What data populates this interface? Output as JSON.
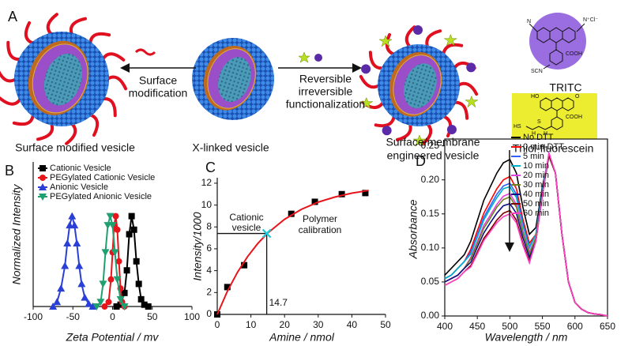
{
  "panel_a": {
    "label": "A",
    "arrow_left_text": [
      "Surface",
      "modification"
    ],
    "arrow_right_text": [
      "Reversible",
      "irreversible",
      "functionalization"
    ],
    "captions": {
      "left": "Surface modified vesicle",
      "middle": "X-linked vesicle",
      "right": [
        "Surface/membrane",
        "engineered vesicle"
      ]
    },
    "tritc": {
      "name": "TRITC",
      "atoms": [
        "N",
        "N⁺Cl⁻",
        "COOH",
        "SCN"
      ]
    },
    "fluorescein": {
      "name": "Thiol-fluorescein",
      "atoms": [
        "HO",
        "O",
        "COOH",
        "HS",
        "S",
        "H",
        "H"
      ]
    }
  },
  "chart_data": [
    {
      "type": "line",
      "panel_label": "B",
      "xlabel": "Zeta Potential / mv",
      "ylabel": "Normalized Intensity",
      "xlim": [
        -100,
        100
      ],
      "xticks": [
        -100,
        -50,
        0,
        50,
        100
      ],
      "ylim": [
        0,
        1.6
      ],
      "legend": "upper left",
      "series": [
        {
          "name": "Cationic Vesicle",
          "color": "#000000",
          "marker": "square",
          "line": true,
          "x": [
            5,
            10,
            15,
            18,
            21,
            24,
            27,
            30,
            33,
            36,
            40,
            45
          ],
          "values": [
            0,
            0.02,
            0.15,
            0.4,
            0.8,
            1.0,
            0.85,
            0.5,
            0.25,
            0.08,
            0.02,
            0
          ]
        },
        {
          "name": "PEGylated Cationic Vesicle",
          "color": "#e8141c",
          "marker": "circle",
          "line": true,
          "x": [
            -10,
            -5,
            -2,
            0,
            2,
            4,
            6,
            8,
            10,
            12,
            15
          ],
          "values": [
            0,
            0.05,
            0.3,
            0.6,
            0.9,
            1.0,
            0.85,
            0.5,
            0.2,
            0.05,
            0
          ]
        },
        {
          "name": "Anionic Vesicle",
          "color": "#2a3fd6",
          "marker": "triangle-up",
          "line": true,
          "x": [
            -75,
            -70,
            -65,
            -60,
            -57,
            -54,
            -51,
            -48,
            -45,
            -42,
            -39,
            -35,
            -30,
            -25
          ],
          "values": [
            0,
            0.05,
            0.2,
            0.45,
            0.7,
            0.9,
            1.0,
            0.9,
            0.7,
            0.45,
            0.25,
            0.1,
            0.03,
            0
          ]
        },
        {
          "name": "PEGylated Anionic Vesicle",
          "color": "#20a070",
          "marker": "triangle-down",
          "line": true,
          "x": [
            -20,
            -15,
            -12,
            -9,
            -6,
            -3,
            0,
            3,
            6,
            10,
            15
          ],
          "values": [
            0,
            0.05,
            0.25,
            0.6,
            0.9,
            1.0,
            0.9,
            0.6,
            0.3,
            0.08,
            0
          ]
        }
      ]
    },
    {
      "type": "scatter",
      "panel_label": "C",
      "xlabel": "Amine / nmol",
      "ylabel": "Intensity/1000",
      "xlim": [
        0,
        50
      ],
      "xticks": [
        0,
        10,
        20,
        30,
        40,
        50
      ],
      "ylim": [
        0,
        12.5
      ],
      "yticks": [
        0,
        2,
        4,
        6,
        8,
        10,
        12
      ],
      "annotations": [
        [
          "Cationic",
          "vesicle"
        ],
        [
          "Polymer",
          "calibration"
        ]
      ],
      "series": [
        {
          "color": "#000000",
          "marker": "square",
          "line": false,
          "x": [
            0,
            3,
            8,
            22,
            29,
            37,
            44
          ],
          "values": [
            0,
            2.5,
            4.5,
            9.2,
            10.3,
            11,
            11.1
          ]
        },
        {
          "color": "#e8141c",
          "marker": "none",
          "line": true,
          "x": [
            0,
            3,
            6,
            9,
            12,
            15,
            20,
            25,
            30,
            35,
            40,
            45
          ],
          "values": [
            0,
            2.11,
            3.85,
            5.28,
            6.47,
            7.44,
            8.7,
            9.61,
            10.27,
            10.74,
            11.09,
            11.34
          ]
        },
        {
          "color": "#20c8d8",
          "marker": "x",
          "line": false,
          "droplines": true,
          "x": [
            14.7
          ],
          "values": [
            7.4
          ]
        }
      ]
    },
    {
      "type": "line",
      "panel_label": "D",
      "xlabel": "Wavelength / nm",
      "ylabel": "Absorbance",
      "xlim": [
        400,
        650
      ],
      "xticks": [
        400,
        450,
        500,
        550,
        600,
        650
      ],
      "ylim": [
        0,
        0.26
      ],
      "yticks": [
        {
          "value": 0,
          "label": "0.00"
        },
        0.05,
        {
          "value": 0.1,
          "label": "0.10"
        },
        0.15,
        {
          "value": 0.2,
          "label": "0.20"
        },
        0.25
      ],
      "legend": "upper right",
      "frame": true,
      "x": [
        400,
        410,
        420,
        430,
        440,
        450,
        460,
        470,
        480,
        490,
        500,
        510,
        520,
        530,
        540,
        550,
        560,
        570,
        580,
        590,
        600,
        610,
        620,
        630,
        640,
        650
      ],
      "series": [
        {
          "name": "No DTT",
          "color": "#000000",
          "marker": "none",
          "line": true,
          "values": [
            0.06,
            0.07,
            0.08,
            0.09,
            0.11,
            0.14,
            0.17,
            0.19,
            0.21,
            0.225,
            0.23,
            0.21,
            0.16,
            0.12,
            0.13,
            0.19,
            0.235,
            0.21,
            0.12,
            0.05,
            0.02,
            0.01,
            0.005,
            0.003,
            0.002,
            0
          ]
        },
        {
          "name": "0 min-DTT",
          "color": "#ff0000",
          "marker": "none",
          "line": true,
          "values": [
            0.055,
            0.06,
            0.07,
            0.08,
            0.098,
            0.125,
            0.151,
            0.169,
            0.187,
            0.2,
            0.205,
            0.187,
            0.142,
            0.107,
            0.12,
            0.185,
            0.235,
            0.21,
            0.12,
            0.05,
            0.02,
            0.01,
            0.005,
            0.003,
            0.002,
            0
          ]
        },
        {
          "name": "5 min",
          "color": "#3060ff",
          "marker": "none",
          "line": true,
          "values": [
            0.055,
            0.06,
            0.07,
            0.08,
            0.094,
            0.119,
            0.145,
            0.162,
            0.179,
            0.191,
            0.195,
            0.179,
            0.136,
            0.102,
            0.12,
            0.185,
            0.238,
            0.21,
            0.12,
            0.05,
            0.02,
            0.01,
            0.005,
            0.003,
            0.002,
            0
          ]
        },
        {
          "name": "10 min",
          "color": "#00b0c8",
          "marker": "none",
          "line": true,
          "values": [
            0.055,
            0.06,
            0.07,
            0.08,
            0.091,
            0.116,
            0.141,
            0.158,
            0.174,
            0.187,
            0.19,
            0.174,
            0.133,
            0.1,
            0.12,
            0.185,
            0.236,
            0.21,
            0.12,
            0.05,
            0.02,
            0.01,
            0.005,
            0.003,
            0.002,
            0
          ]
        },
        {
          "name": "20 min",
          "color": "#e040e0",
          "marker": "none",
          "line": true,
          "values": [
            0.05,
            0.055,
            0.06,
            0.07,
            0.086,
            0.109,
            0.133,
            0.148,
            0.164,
            0.176,
            0.18,
            0.164,
            0.125,
            0.094,
            0.115,
            0.18,
            0.237,
            0.21,
            0.12,
            0.05,
            0.02,
            0.01,
            0.005,
            0.003,
            0.002,
            0
          ]
        },
        {
          "name": "30 min",
          "color": "#708020",
          "marker": "none",
          "line": true,
          "values": [
            0.05,
            0.055,
            0.06,
            0.07,
            0.084,
            0.106,
            0.129,
            0.144,
            0.16,
            0.171,
            0.175,
            0.16,
            0.122,
            0.091,
            0.115,
            0.18,
            0.235,
            0.21,
            0.12,
            0.05,
            0.02,
            0.01,
            0.005,
            0.003,
            0.002,
            0
          ]
        },
        {
          "name": "40 min",
          "color": "#101080",
          "marker": "none",
          "line": true,
          "values": [
            0.05,
            0.055,
            0.06,
            0.07,
            0.079,
            0.101,
            0.122,
            0.137,
            0.151,
            0.162,
            0.165,
            0.151,
            0.115,
            0.086,
            0.11,
            0.18,
            0.236,
            0.21,
            0.12,
            0.05,
            0.02,
            0.01,
            0.005,
            0.003,
            0.002,
            0
          ]
        },
        {
          "name": "50 min",
          "color": "#800000",
          "marker": "none",
          "line": true,
          "values": [
            0.045,
            0.05,
            0.055,
            0.065,
            0.074,
            0.094,
            0.114,
            0.127,
            0.141,
            0.151,
            0.155,
            0.141,
            0.107,
            0.08,
            0.11,
            0.178,
            0.237,
            0.21,
            0.12,
            0.05,
            0.02,
            0.01,
            0.005,
            0.003,
            0.002,
            0
          ]
        },
        {
          "name": "60 min",
          "color": "#ff40c0",
          "marker": "none",
          "line": true,
          "values": [
            0.045,
            0.05,
            0.055,
            0.065,
            0.072,
            0.091,
            0.111,
            0.124,
            0.137,
            0.146,
            0.15,
            0.137,
            0.104,
            0.078,
            0.11,
            0.178,
            0.24,
            0.21,
            0.12,
            0.05,
            0.02,
            0.01,
            0.005,
            0.003,
            0.002,
            0
          ]
        }
      ]
    }
  ]
}
